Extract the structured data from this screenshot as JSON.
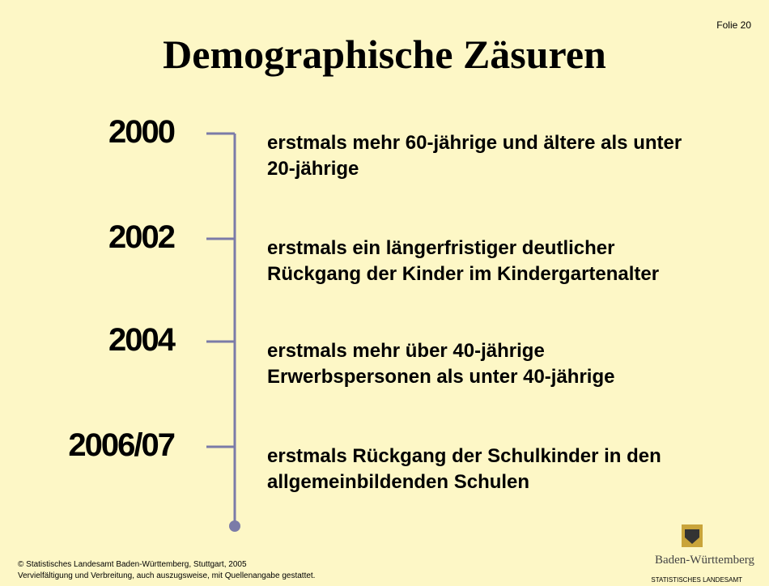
{
  "slide_label": "Folie 20",
  "title": "Demographische Zäsuren",
  "events": [
    {
      "year": "2000",
      "lines": [
        "erstmals mehr 60-jährige und ältere als unter",
        "20-jährige"
      ]
    },
    {
      "year": "2002",
      "lines": [
        "erstmals ein längerfristiger deutlicher",
        "Rückgang der Kinder im Kindergartenalter"
      ]
    },
    {
      "year": "2004",
      "lines": [
        "erstmals mehr über 40-jährige",
        "Erwerbspersonen als unter 40-jährige"
      ]
    },
    {
      "year": "2006/07",
      "lines": [
        "erstmals Rückgang der Schulkinder in den",
        "allgemeinbildenden Schulen"
      ]
    }
  ],
  "footer": [
    "© Statistisches Landesamt Baden-Württemberg, Stuttgart, 2005",
    "Vervielfältigung und Verbreitung, auch auszugsweise, mit Quellenangabe gestattet."
  ],
  "logo": {
    "name": "Baden-Württemberg",
    "subtitle": "STATISTISCHES LANDESAMT"
  }
}
